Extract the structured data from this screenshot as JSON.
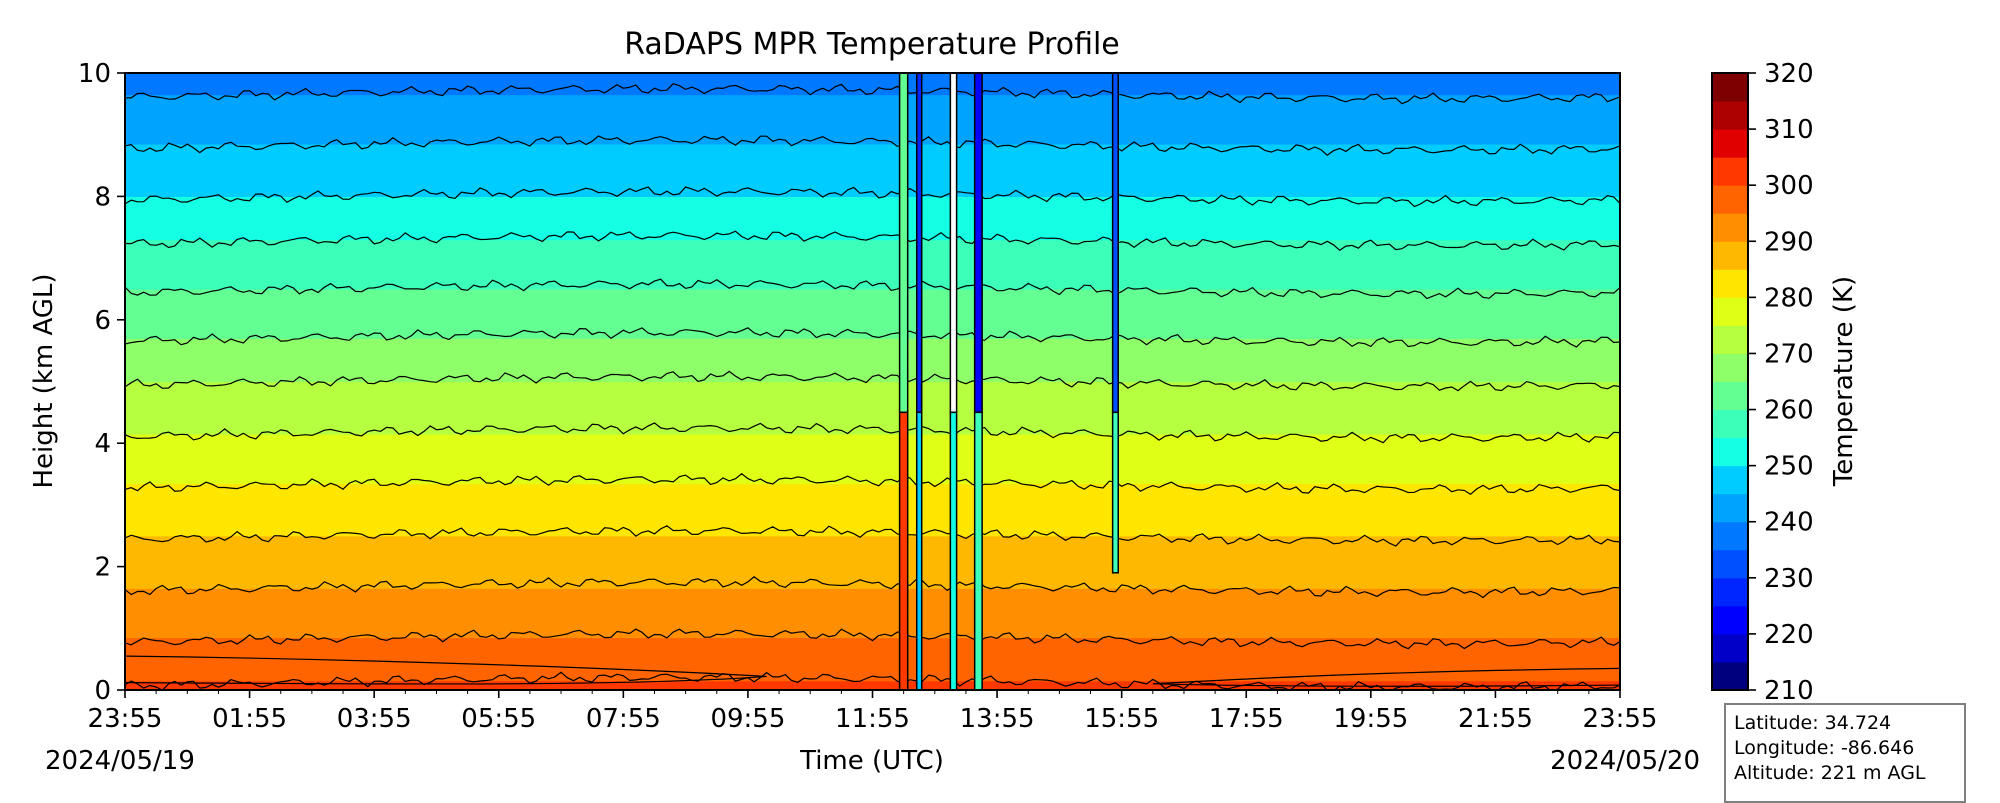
{
  "chart_data": {
    "type": "heatmap",
    "subtype": "filled contour",
    "title": "RaDAPS MPR Temperature Profile",
    "xlabel": "Time (UTC)",
    "ylabel": "Height (km AGL)",
    "x_tick_labels": [
      "23:55",
      "01:55",
      "03:55",
      "05:55",
      "07:55",
      "09:55",
      "11:55",
      "13:55",
      "15:55",
      "17:55",
      "19:55",
      "21:55",
      "23:55"
    ],
    "x_hours_from_start": [
      0,
      2,
      4,
      6,
      8,
      10,
      12,
      14,
      16,
      18,
      20,
      22,
      24
    ],
    "start_date_label": "2024/05/19",
    "end_date_label": "2024/05/20",
    "ylim": [
      0,
      10
    ],
    "y_ticks": [
      0,
      2,
      4,
      6,
      8,
      10
    ],
    "colorbar": {
      "label": "Temperature (K)",
      "range": [
        210,
        320
      ],
      "ticks": [
        210,
        220,
        230,
        240,
        250,
        260,
        270,
        280,
        290,
        300,
        310,
        320
      ],
      "level_step": 5,
      "colormap": "jet",
      "colors": [
        "#00007f",
        "#0000c8",
        "#0000ff",
        "#0026ff",
        "#0050ff",
        "#0078ff",
        "#00a4ff",
        "#00ccff",
        "#14ffe3",
        "#3cffba",
        "#64ff93",
        "#8eff69",
        "#b6ff40",
        "#e0ff17",
        "#ffe600",
        "#ffb800",
        "#ff8e00",
        "#ff6400",
        "#ff3800",
        "#e10000",
        "#ad0000",
        "#7f0000"
      ]
    },
    "profile": {
      "height_km": [
        0,
        0.5,
        1,
        2,
        3,
        4,
        5,
        6,
        7,
        8,
        9,
        10
      ],
      "temperature_K_typical": [
        301,
        297,
        294,
        288,
        282,
        276,
        270,
        263,
        257,
        250,
        244,
        238
      ]
    },
    "anomalies": [
      {
        "time_hours": 12.5,
        "note": "vertical data artifacts"
      },
      {
        "time_hours": 13.3,
        "note": "vertical data artifacts"
      },
      {
        "time_hours": 13.7,
        "note": "vertical data artifacts"
      },
      {
        "time_hours": 15.9,
        "note": "vertical data artifacts"
      }
    ]
  },
  "station": {
    "latitude": "Latitude: 34.724",
    "longitude": "Longitude: -86.646",
    "altitude": "Altitude: 221 m AGL"
  }
}
